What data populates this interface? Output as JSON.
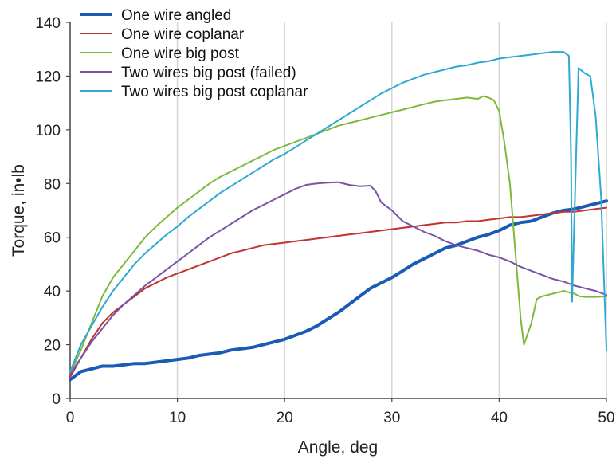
{
  "chart_data": {
    "type": "line",
    "xlabel": "Angle, deg",
    "ylabel": "Torque, in•lb",
    "xlim": [
      0,
      50
    ],
    "ylim": [
      0,
      140
    ],
    "x_ticks": [
      0,
      10,
      20,
      30,
      40,
      50
    ],
    "y_ticks": [
      0,
      20,
      40,
      60,
      80,
      100,
      120,
      140
    ],
    "grid": "vertical",
    "legend_position": "top-left",
    "series": [
      {
        "name": "One wire angled",
        "color": "#1a5bb5",
        "bold": true,
        "points": [
          [
            0,
            7
          ],
          [
            1,
            10
          ],
          [
            2,
            11
          ],
          [
            3,
            12
          ],
          [
            4,
            12
          ],
          [
            5,
            12.5
          ],
          [
            6,
            13
          ],
          [
            7,
            13
          ],
          [
            8,
            13.5
          ],
          [
            9,
            14
          ],
          [
            10,
            14.5
          ],
          [
            11,
            15
          ],
          [
            12,
            16
          ],
          [
            13,
            16.5
          ],
          [
            14,
            17
          ],
          [
            15,
            18
          ],
          [
            16,
            18.5
          ],
          [
            17,
            19
          ],
          [
            18,
            20
          ],
          [
            19,
            21
          ],
          [
            20,
            22
          ],
          [
            21,
            23.5
          ],
          [
            22,
            25
          ],
          [
            23,
            27
          ],
          [
            24,
            29.5
          ],
          [
            25,
            32
          ],
          [
            26,
            35
          ],
          [
            27,
            38
          ],
          [
            28,
            41
          ],
          [
            29,
            43
          ],
          [
            30,
            45
          ],
          [
            31,
            47.5
          ],
          [
            32,
            50
          ],
          [
            33,
            52
          ],
          [
            34,
            54
          ],
          [
            35,
            56
          ],
          [
            36,
            57
          ],
          [
            37,
            58.5
          ],
          [
            38,
            60
          ],
          [
            39,
            61
          ],
          [
            40,
            62.5
          ],
          [
            41,
            64.5
          ],
          [
            42,
            65.5
          ],
          [
            43,
            66
          ],
          [
            44,
            67.5
          ],
          [
            45,
            69
          ],
          [
            46,
            70
          ],
          [
            47,
            70.5
          ],
          [
            48,
            71.5
          ],
          [
            49,
            72.5
          ],
          [
            50,
            73.5
          ]
        ]
      },
      {
        "name": "One wire coplanar",
        "color": "#c0332e",
        "bold": false,
        "points": [
          [
            0,
            8
          ],
          [
            1,
            15
          ],
          [
            2,
            22
          ],
          [
            3,
            28
          ],
          [
            4,
            32
          ],
          [
            5,
            35
          ],
          [
            6,
            38
          ],
          [
            7,
            41
          ],
          [
            8,
            43
          ],
          [
            9,
            45
          ],
          [
            10,
            46.5
          ],
          [
            11,
            48
          ],
          [
            12,
            49.5
          ],
          [
            13,
            51
          ],
          [
            14,
            52.5
          ],
          [
            15,
            54
          ],
          [
            16,
            55
          ],
          [
            17,
            56
          ],
          [
            18,
            57
          ],
          [
            19,
            57.5
          ],
          [
            20,
            58
          ],
          [
            21,
            58.5
          ],
          [
            22,
            59
          ],
          [
            23,
            59.5
          ],
          [
            24,
            60
          ],
          [
            25,
            60.5
          ],
          [
            26,
            61
          ],
          [
            27,
            61.5
          ],
          [
            28,
            62
          ],
          [
            29,
            62.5
          ],
          [
            30,
            63
          ],
          [
            31,
            63.5
          ],
          [
            32,
            64
          ],
          [
            33,
            64.5
          ],
          [
            34,
            65
          ],
          [
            35,
            65.5
          ],
          [
            36,
            65.5
          ],
          [
            37,
            66
          ],
          [
            38,
            66
          ],
          [
            39,
            66.5
          ],
          [
            40,
            67
          ],
          [
            41,
            67.5
          ],
          [
            42,
            67.5
          ],
          [
            43,
            68
          ],
          [
            44,
            68.5
          ],
          [
            45,
            69
          ],
          [
            46,
            69.5
          ],
          [
            47,
            69.5
          ],
          [
            48,
            70
          ],
          [
            49,
            70.5
          ],
          [
            50,
            71
          ]
        ]
      },
      {
        "name": "One wire big post",
        "color": "#7fb93b",
        "bold": false,
        "points": [
          [
            0,
            9
          ],
          [
            1,
            18
          ],
          [
            2,
            28
          ],
          [
            3,
            38
          ],
          [
            4,
            45
          ],
          [
            5,
            50
          ],
          [
            6,
            55
          ],
          [
            7,
            60
          ],
          [
            8,
            64
          ],
          [
            9,
            67.5
          ],
          [
            10,
            71
          ],
          [
            11,
            74
          ],
          [
            12,
            77
          ],
          [
            13,
            80
          ],
          [
            14,
            82.5
          ],
          [
            15,
            84.5
          ],
          [
            16,
            86.5
          ],
          [
            17,
            88.5
          ],
          [
            18,
            90.5
          ],
          [
            19,
            92.5
          ],
          [
            20,
            94
          ],
          [
            21,
            95.5
          ],
          [
            22,
            97
          ],
          [
            23,
            98.5
          ],
          [
            24,
            100
          ],
          [
            25,
            101.5
          ],
          [
            26,
            102.5
          ],
          [
            27,
            103.5
          ],
          [
            28,
            104.5
          ],
          [
            29,
            105.5
          ],
          [
            30,
            106.5
          ],
          [
            31,
            107.5
          ],
          [
            32,
            108.5
          ],
          [
            33,
            109.5
          ],
          [
            34,
            110.5
          ],
          [
            35,
            111
          ],
          [
            36,
            111.5
          ],
          [
            37,
            112
          ],
          [
            38,
            111.5
          ],
          [
            38.5,
            112.5
          ],
          [
            39,
            112
          ],
          [
            39.5,
            111
          ],
          [
            40,
            107
          ],
          [
            40.5,
            95
          ],
          [
            41,
            80
          ],
          [
            41.5,
            55
          ],
          [
            42,
            30
          ],
          [
            42.3,
            20
          ],
          [
            43,
            28
          ],
          [
            43.5,
            37
          ],
          [
            44,
            38
          ],
          [
            45,
            39
          ],
          [
            46,
            40
          ],
          [
            47,
            39
          ],
          [
            47.5,
            38
          ],
          [
            48,
            37.8
          ],
          [
            49,
            37.8
          ],
          [
            50,
            38
          ]
        ]
      },
      {
        "name": "Two wires big post (failed)",
        "color": "#7a52a8",
        "bold": false,
        "points": [
          [
            0,
            9
          ],
          [
            1,
            15
          ],
          [
            2,
            21
          ],
          [
            3,
            26
          ],
          [
            4,
            31
          ],
          [
            5,
            35
          ],
          [
            6,
            38.5
          ],
          [
            7,
            42
          ],
          [
            8,
            45
          ],
          [
            9,
            48
          ],
          [
            10,
            51
          ],
          [
            11,
            54
          ],
          [
            12,
            57
          ],
          [
            13,
            60
          ],
          [
            14,
            62.5
          ],
          [
            15,
            65
          ],
          [
            16,
            67.5
          ],
          [
            17,
            70
          ],
          [
            18,
            72
          ],
          [
            19,
            74
          ],
          [
            20,
            76
          ],
          [
            21,
            78
          ],
          [
            22,
            79.5
          ],
          [
            23,
            80
          ],
          [
            24,
            80.3
          ],
          [
            25,
            80.5
          ],
          [
            26,
            79.5
          ],
          [
            27,
            79
          ],
          [
            28,
            79.2
          ],
          [
            28.5,
            77
          ],
          [
            29,
            73
          ],
          [
            30,
            70
          ],
          [
            31,
            66
          ],
          [
            32,
            64
          ],
          [
            33,
            62
          ],
          [
            34,
            60.5
          ],
          [
            35,
            58.5
          ],
          [
            36,
            57
          ],
          [
            37,
            56
          ],
          [
            38,
            55
          ],
          [
            39,
            53.5
          ],
          [
            40,
            52.5
          ],
          [
            41,
            51
          ],
          [
            42,
            49
          ],
          [
            43,
            47.5
          ],
          [
            44,
            46
          ],
          [
            45,
            44.5
          ],
          [
            46,
            43.5
          ],
          [
            47,
            42
          ],
          [
            48,
            41
          ],
          [
            49,
            40
          ],
          [
            50,
            38.5
          ]
        ]
      },
      {
        "name": "Two wires big post coplanar",
        "color": "#2ea9d3",
        "bold": false,
        "points": [
          [
            0,
            10
          ],
          [
            1,
            20
          ],
          [
            2,
            27
          ],
          [
            3,
            34
          ],
          [
            4,
            40
          ],
          [
            5,
            45
          ],
          [
            6,
            50
          ],
          [
            7,
            54
          ],
          [
            8,
            57.5
          ],
          [
            9,
            61
          ],
          [
            10,
            64
          ],
          [
            11,
            67.5
          ],
          [
            12,
            70.5
          ],
          [
            13,
            73.5
          ],
          [
            14,
            76.5
          ],
          [
            15,
            79
          ],
          [
            16,
            81.5
          ],
          [
            17,
            84
          ],
          [
            18,
            86.5
          ],
          [
            19,
            89
          ],
          [
            20,
            91
          ],
          [
            21,
            93.5
          ],
          [
            22,
            96
          ],
          [
            23,
            98.5
          ],
          [
            24,
            101
          ],
          [
            25,
            103.5
          ],
          [
            26,
            106
          ],
          [
            27,
            108.5
          ],
          [
            28,
            111
          ],
          [
            29,
            113.5
          ],
          [
            30,
            115.5
          ],
          [
            31,
            117.5
          ],
          [
            32,
            119
          ],
          [
            33,
            120.5
          ],
          [
            34,
            121.5
          ],
          [
            35,
            122.5
          ],
          [
            36,
            123.5
          ],
          [
            37,
            124
          ],
          [
            38,
            125
          ],
          [
            39,
            125.5
          ],
          [
            40,
            126.5
          ],
          [
            41,
            127
          ],
          [
            42,
            127.5
          ],
          [
            43,
            128
          ],
          [
            44,
            128.5
          ],
          [
            45,
            129
          ],
          [
            46,
            129
          ],
          [
            46.5,
            127.5
          ],
          [
            46.7,
            90
          ],
          [
            46.8,
            36
          ],
          [
            47.1,
            80
          ],
          [
            47.4,
            123
          ],
          [
            48,
            121
          ],
          [
            48.5,
            120
          ],
          [
            49,
            105
          ],
          [
            49.5,
            75
          ],
          [
            50,
            18
          ]
        ]
      }
    ]
  }
}
